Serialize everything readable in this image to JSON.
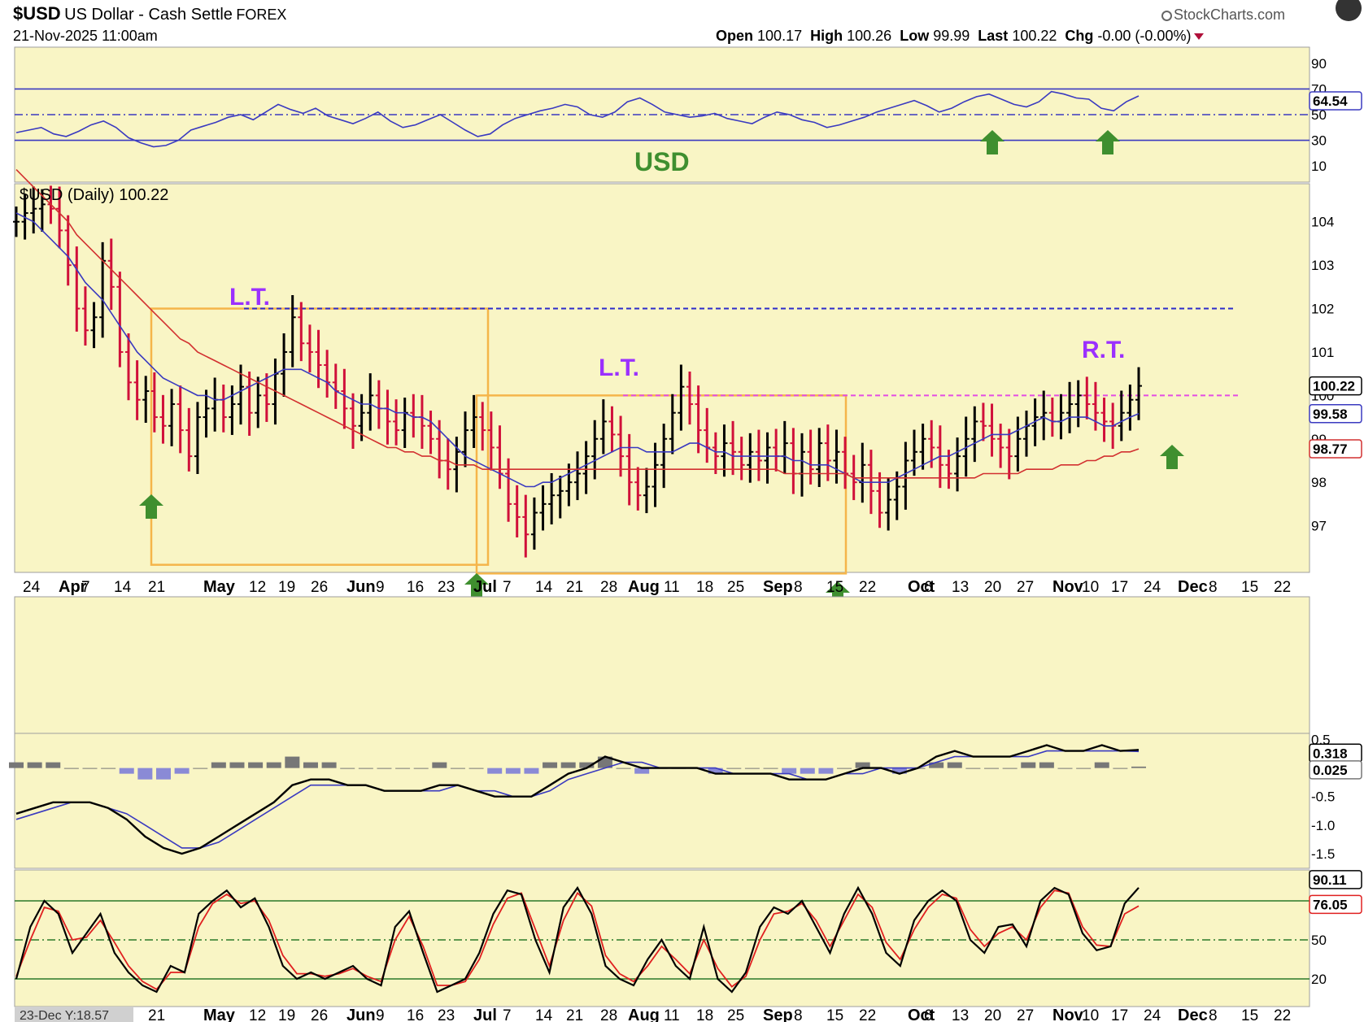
{
  "header": {
    "symbol": "$USD",
    "description": "US Dollar - Cash Settle",
    "exchange": "FOREX",
    "datetime": "21-Nov-2025 11:00am",
    "watermark": "StockCharts.com",
    "open_label": "Open",
    "open_value": "100.17",
    "high_label": "High",
    "high_value": "100.26",
    "low_label": "Low",
    "low_value": "99.99",
    "last_label": "Last",
    "last_value": "100.22",
    "chg_label": "Chg",
    "chg_value": "-0.00 (-0.00%)"
  },
  "colors": {
    "panel_bg": "#f9f5c5",
    "up_bar": "#000000",
    "down_bar": "#d0103a",
    "sma_fast": "#3a3ac0",
    "sma_slow": "#d23030",
    "annotation_purple": "#9b30ff",
    "arrow_green": "#3f8f2f",
    "box_orange": "#f5b54a",
    "neckline_blue": "#2c2ccc",
    "neckline_magenta": "#e44ce4"
  },
  "annotations": {
    "usd_label": "USD",
    "lt1": "L.T.",
    "lt2": "L.T.",
    "rt": "R.T.",
    "date_badge": "23-Dec Y:18.57"
  },
  "chart_data": [
    {
      "type": "line",
      "panel": "RSI",
      "ylim": [
        0,
        100
      ],
      "y_ticks": [
        90,
        70,
        50,
        30,
        10
      ],
      "reference_lines": [
        70,
        50,
        30
      ],
      "last_value": "64.54",
      "values": [
        36,
        38,
        40,
        35,
        33,
        37,
        42,
        45,
        40,
        32,
        28,
        25,
        26,
        30,
        38,
        41,
        44,
        48,
        50,
        46,
        52,
        58,
        54,
        51,
        55,
        49,
        46,
        43,
        47,
        52,
        45,
        40,
        42,
        46,
        50,
        44,
        38,
        33,
        35,
        42,
        47,
        50,
        53,
        55,
        58,
        56,
        50,
        48,
        52,
        60,
        63,
        58,
        52,
        50,
        48,
        49,
        51,
        47,
        45,
        43,
        48,
        52,
        50,
        46,
        44,
        40,
        42,
        45,
        48,
        52,
        55,
        58,
        61,
        57,
        52,
        55,
        60,
        64,
        66,
        62,
        58,
        56,
        60,
        68,
        66,
        63,
        62,
        55,
        53,
        60,
        64.54
      ]
    },
    {
      "type": "bar",
      "panel": "price",
      "title": "$USD (Daily) 100.22",
      "ylim": [
        96,
        104.8
      ],
      "y_ticks": [
        104,
        103,
        102,
        101,
        100,
        99,
        98,
        97
      ],
      "x_tick_labels": [
        "24",
        "Apr",
        "7",
        "14",
        "21",
        "May",
        "12",
        "19",
        "26",
        "Jun",
        "9",
        "16",
        "23",
        "Jul",
        "7",
        "14",
        "21",
        "28",
        "Aug",
        "11",
        "18",
        "25",
        "Sep",
        "8",
        "15",
        "22",
        "Oct",
        "6",
        "13",
        "20",
        "27",
        "Nov",
        "10",
        "17",
        "24",
        "Dec",
        "8",
        "15",
        "22"
      ],
      "last_value": "100.22",
      "sma_fast_last": "99.58",
      "sma_slow_last": "98.77",
      "neckline_high": 102.0,
      "neckline_low": 100.0,
      "closes": [
        104.0,
        104.2,
        104.3,
        104.4,
        104.3,
        103.8,
        103.0,
        102.0,
        101.5,
        101.8,
        103.1,
        102.5,
        101.0,
        100.3,
        99.9,
        100.1,
        99.5,
        99.3,
        99.8,
        99.2,
        98.6,
        99.5,
        99.7,
        99.9,
        99.5,
        99.8,
        100.2,
        99.6,
        100.0,
        99.8,
        100.5,
        101.0,
        101.8,
        101.2,
        101.0,
        100.7,
        100.3,
        100.1,
        99.7,
        99.3,
        99.6,
        100.0,
        99.7,
        99.4,
        99.2,
        99.6,
        99.5,
        99.3,
        99.0,
        98.5,
        98.3,
        98.7,
        99.2,
        99.5,
        99.2,
        98.8,
        98.2,
        97.5,
        97.2,
        96.8,
        97.3,
        97.5,
        97.7,
        97.8,
        98.0,
        98.2,
        98.6,
        99.0,
        99.4,
        99.1,
        98.6,
        98.0,
        97.7,
        97.9,
        98.4,
        99.0,
        99.6,
        100.2,
        99.8,
        99.2,
        98.8,
        98.6,
        98.9,
        98.7,
        98.4,
        98.7,
        98.5,
        98.8,
        98.6,
        98.9,
        98.2,
        98.7,
        98.3,
        98.9,
        98.5,
        98.7,
        98.2,
        98.0,
        98.4,
        97.8,
        97.3,
        97.6,
        97.9,
        98.5,
        98.7,
        99.0,
        98.8,
        98.4,
        98.2,
        98.6,
        99.0,
        99.4,
        99.3,
        99.0,
        98.8,
        98.6,
        99.0,
        99.3,
        99.5,
        99.6,
        99.4,
        99.6,
        99.8,
        100.0,
        99.8,
        99.6,
        99.4,
        99.3,
        99.6,
        99.9,
        100.22
      ],
      "sma_fast": [
        104.2,
        104.1,
        104.0,
        103.8,
        103.6,
        103.4,
        103.2,
        102.9,
        102.6,
        102.4,
        102.2,
        101.9,
        101.6,
        101.3,
        101.0,
        100.8,
        100.6,
        100.4,
        100.3,
        100.2,
        100.1,
        100.0,
        100.0,
        99.9,
        99.9,
        100.0,
        100.1,
        100.2,
        100.3,
        100.4,
        100.5,
        100.6,
        100.6,
        100.6,
        100.5,
        100.4,
        100.3,
        100.1,
        100.0,
        99.9,
        99.8,
        99.8,
        99.7,
        99.7,
        99.6,
        99.6,
        99.5,
        99.5,
        99.4,
        99.2,
        99.0,
        98.8,
        98.6,
        98.5,
        98.4,
        98.3,
        98.2,
        98.1,
        98.0,
        97.9,
        97.9,
        98.0,
        98.0,
        98.1,
        98.2,
        98.3,
        98.4,
        98.5,
        98.6,
        98.7,
        98.8,
        98.8,
        98.8,
        98.7,
        98.7,
        98.7,
        98.7,
        98.8,
        98.9,
        98.9,
        98.8,
        98.7,
        98.7,
        98.6,
        98.6,
        98.6,
        98.6,
        98.6,
        98.6,
        98.6,
        98.5,
        98.5,
        98.4,
        98.4,
        98.4,
        98.3,
        98.2,
        98.1,
        98.0,
        98.0,
        98.0,
        98.0,
        98.1,
        98.2,
        98.3,
        98.4,
        98.5,
        98.6,
        98.6,
        98.7,
        98.8,
        98.9,
        99.0,
        99.1,
        99.1,
        99.1,
        99.2,
        99.3,
        99.4,
        99.5,
        99.4,
        99.4,
        99.5,
        99.5,
        99.5,
        99.4,
        99.3,
        99.3,
        99.4,
        99.5,
        99.58
      ],
      "sma_slow": [
        105.2,
        105.0,
        104.8,
        104.6,
        104.4,
        104.2,
        104.0,
        103.7,
        103.5,
        103.3,
        103.1,
        102.9,
        102.7,
        102.5,
        102.3,
        102.1,
        101.9,
        101.7,
        101.5,
        101.3,
        101.2,
        101.0,
        100.9,
        100.8,
        100.7,
        100.6,
        100.5,
        100.4,
        100.3,
        100.2,
        100.1,
        100.0,
        99.9,
        99.8,
        99.7,
        99.6,
        99.5,
        99.4,
        99.3,
        99.2,
        99.1,
        99.0,
        98.9,
        98.8,
        98.8,
        98.7,
        98.7,
        98.6,
        98.6,
        98.5,
        98.5,
        98.4,
        98.4,
        98.4,
        98.3,
        98.3,
        98.3,
        98.3,
        98.3,
        98.3,
        98.3,
        98.3,
        98.3,
        98.3,
        98.3,
        98.3,
        98.3,
        98.3,
        98.3,
        98.3,
        98.3,
        98.3,
        98.3,
        98.3,
        98.3,
        98.3,
        98.3,
        98.3,
        98.3,
        98.3,
        98.3,
        98.3,
        98.3,
        98.3,
        98.3,
        98.3,
        98.3,
        98.3,
        98.3,
        98.2,
        98.2,
        98.2,
        98.2,
        98.2,
        98.2,
        98.2,
        98.2,
        98.1,
        98.1,
        98.1,
        98.1,
        98.1,
        98.1,
        98.1,
        98.1,
        98.1,
        98.1,
        98.1,
        98.1,
        98.1,
        98.1,
        98.1,
        98.2,
        98.2,
        98.2,
        98.2,
        98.2,
        98.3,
        98.3,
        98.3,
        98.3,
        98.4,
        98.4,
        98.4,
        98.5,
        98.5,
        98.6,
        98.6,
        98.7,
        98.7,
        98.77
      ]
    },
    {
      "type": "line",
      "panel": "MACD",
      "ylim": [
        -1.7,
        0.55
      ],
      "y_ticks": [
        0.5,
        0.318,
        0.025,
        -0.5,
        -1.0,
        -1.5
      ],
      "last_macd": "0.318",
      "last_histogram": "0.025",
      "macd": [
        -0.8,
        -0.7,
        -0.6,
        -0.6,
        -0.6,
        -0.7,
        -0.9,
        -1.2,
        -1.4,
        -1.5,
        -1.4,
        -1.2,
        -1.0,
        -0.8,
        -0.6,
        -0.3,
        -0.2,
        -0.2,
        -0.3,
        -0.3,
        -0.4,
        -0.4,
        -0.4,
        -0.3,
        -0.3,
        -0.4,
        -0.5,
        -0.5,
        -0.5,
        -0.3,
        -0.1,
        0.0,
        0.2,
        0.1,
        0.0,
        0.0,
        0.0,
        0.0,
        -0.1,
        -0.1,
        -0.1,
        -0.1,
        -0.2,
        -0.2,
        -0.2,
        -0.1,
        0.0,
        0.0,
        -0.1,
        0.0,
        0.2,
        0.3,
        0.2,
        0.2,
        0.2,
        0.3,
        0.4,
        0.3,
        0.3,
        0.4,
        0.3,
        0.318
      ],
      "signal": [
        -0.9,
        -0.8,
        -0.7,
        -0.6,
        -0.6,
        -0.7,
        -0.8,
        -1.0,
        -1.2,
        -1.4,
        -1.4,
        -1.3,
        -1.1,
        -0.9,
        -0.7,
        -0.5,
        -0.3,
        -0.3,
        -0.3,
        -0.3,
        -0.4,
        -0.4,
        -0.4,
        -0.4,
        -0.3,
        -0.4,
        -0.4,
        -0.5,
        -0.5,
        -0.4,
        -0.2,
        -0.1,
        0.0,
        0.1,
        0.1,
        0.0,
        0.0,
        0.0,
        0.0,
        -0.1,
        -0.1,
        -0.1,
        -0.1,
        -0.2,
        -0.2,
        -0.1,
        -0.1,
        0.0,
        0.0,
        0.0,
        0.1,
        0.2,
        0.2,
        0.2,
        0.2,
        0.2,
        0.3,
        0.3,
        0.3,
        0.3,
        0.3,
        0.29
      ],
      "histogram": [
        0.1,
        0.1,
        0.1,
        0.0,
        0.0,
        0.0,
        -0.1,
        -0.2,
        -0.2,
        -0.1,
        0.0,
        0.1,
        0.1,
        0.1,
        0.1,
        0.2,
        0.1,
        0.1,
        0.0,
        0.0,
        0.0,
        0.0,
        0.0,
        0.1,
        0.0,
        0.0,
        -0.1,
        -0.1,
        -0.1,
        0.1,
        0.1,
        0.1,
        0.2,
        0.0,
        -0.1,
        0.0,
        0.0,
        0.0,
        -0.1,
        0.0,
        0.0,
        0.0,
        -0.1,
        -0.1,
        -0.1,
        0.0,
        0.1,
        0.0,
        -0.1,
        0.0,
        0.1,
        0.1,
        0.0,
        0.0,
        0.0,
        0.1,
        0.1,
        0.0,
        0.0,
        0.1,
        0.0,
        0.025
      ]
    },
    {
      "type": "line",
      "panel": "Stochastic",
      "ylim": [
        0,
        100
      ],
      "y_ticks": [
        80,
        50,
        20
      ],
      "last_k": "90.11",
      "last_d": "76.05",
      "k": [
        20,
        60,
        80,
        70,
        40,
        55,
        70,
        40,
        25,
        15,
        10,
        30,
        25,
        70,
        80,
        88,
        75,
        82,
        60,
        30,
        20,
        25,
        20,
        25,
        30,
        20,
        15,
        60,
        72,
        40,
        10,
        15,
        20,
        40,
        70,
        88,
        85,
        50,
        25,
        75,
        90,
        70,
        30,
        20,
        15,
        35,
        50,
        30,
        20,
        60,
        20,
        10,
        25,
        60,
        75,
        70,
        80,
        60,
        40,
        70,
        90,
        70,
        40,
        30,
        65,
        80,
        88,
        80,
        50,
        40,
        60,
        62,
        45,
        80,
        90,
        85,
        55,
        42,
        45,
        78,
        90.11
      ],
      "d": [
        22,
        50,
        75,
        72,
        50,
        52,
        65,
        48,
        30,
        18,
        12,
        25,
        25,
        60,
        78,
        85,
        78,
        80,
        65,
        38,
        24,
        24,
        22,
        24,
        28,
        22,
        18,
        50,
        68,
        45,
        15,
        15,
        18,
        35,
        62,
        82,
        86,
        58,
        30,
        65,
        86,
        76,
        38,
        24,
        18,
        30,
        45,
        35,
        24,
        50,
        28,
        14,
        22,
        50,
        70,
        72,
        78,
        65,
        45,
        65,
        85,
        75,
        48,
        35,
        58,
        75,
        85,
        82,
        58,
        45,
        55,
        60,
        50,
        75,
        88,
        86,
        60,
        46,
        45,
        70,
        76.05
      ]
    }
  ]
}
